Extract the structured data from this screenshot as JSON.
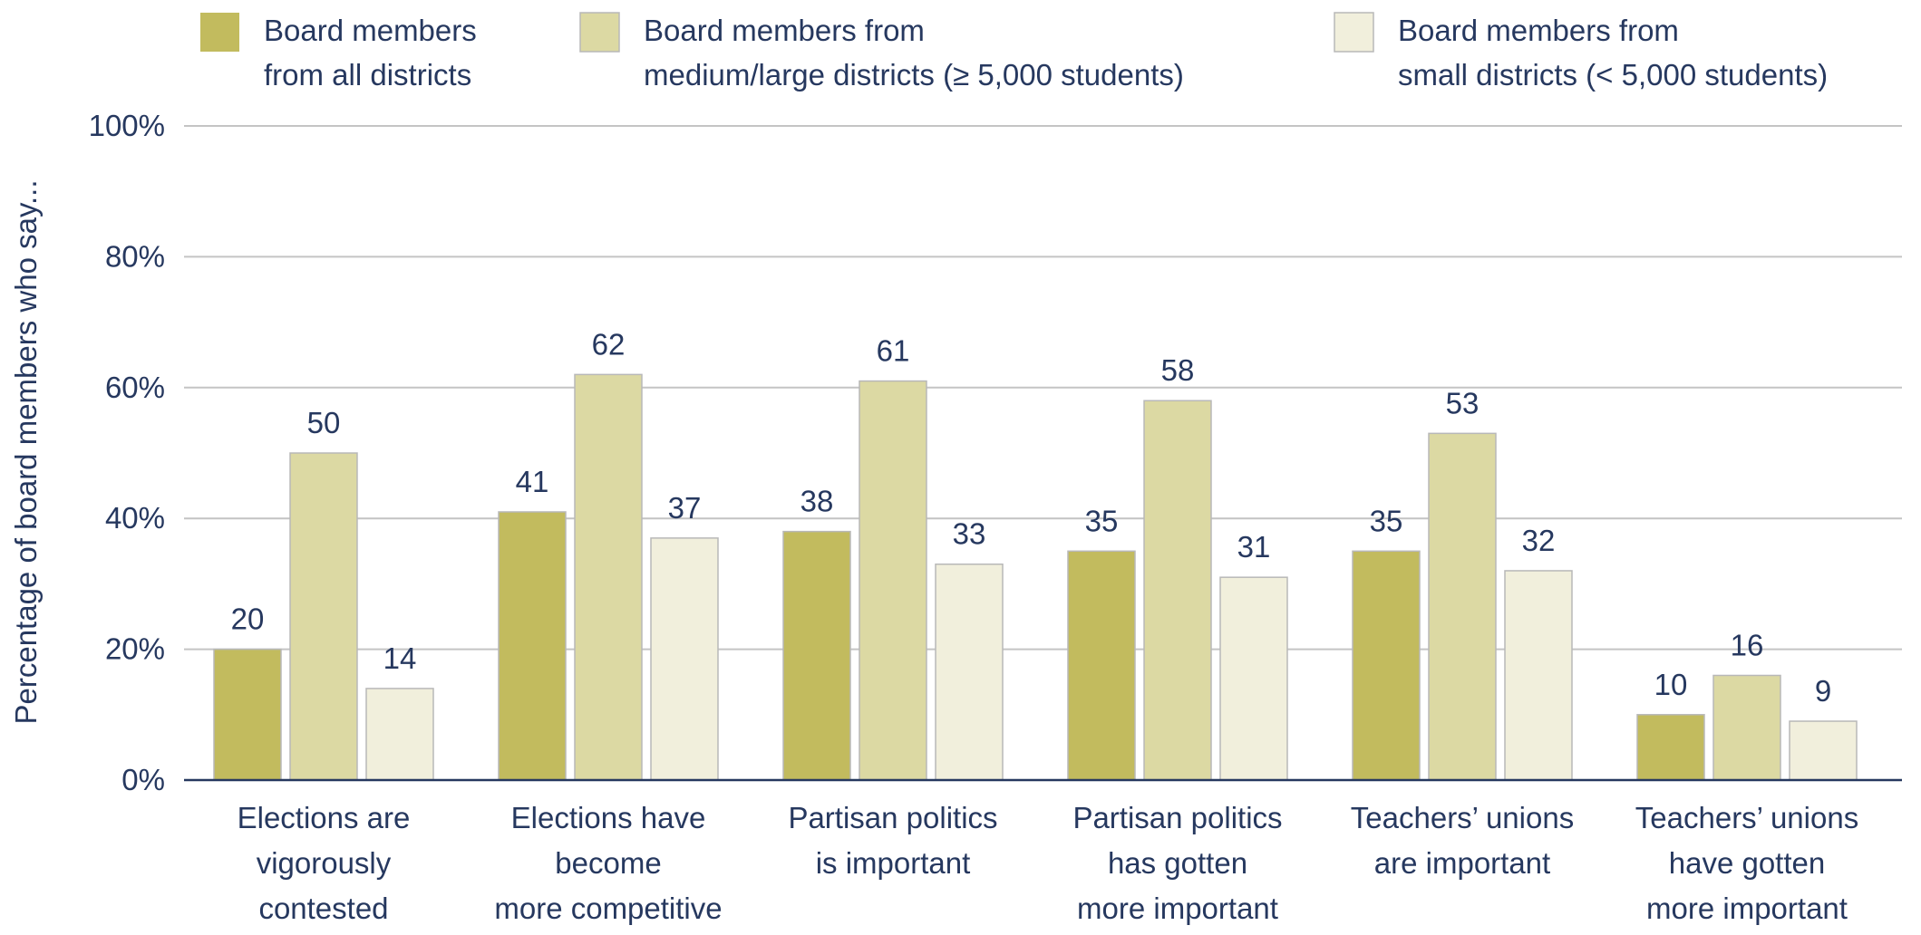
{
  "chart_data": {
    "type": "bar",
    "title": "",
    "xlabel": "",
    "ylabel": "Percentage of board members who say...",
    "ylim": [
      0,
      100
    ],
    "yticks": [
      0,
      20,
      40,
      60,
      80,
      100
    ],
    "ytick_labels": [
      "0%",
      "20%",
      "40%",
      "60%",
      "80%",
      "100%"
    ],
    "grid": true,
    "legend_position": "top",
    "categories": [
      [
        "Elections are",
        "vigorously",
        "contested"
      ],
      [
        "Elections have",
        "become",
        "more competitive"
      ],
      [
        "Partisan politics",
        "is important"
      ],
      [
        "Partisan politics",
        "has gotten",
        "more important"
      ],
      [
        "Teachers’ unions",
        "are important"
      ],
      [
        "Teachers’ unions",
        "have gotten",
        "more important"
      ]
    ],
    "series": [
      {
        "name": [
          "Board members",
          "from all districts"
        ],
        "color": "#c2bb5e",
        "values": [
          20,
          41,
          38,
          35,
          35,
          10
        ]
      },
      {
        "name": [
          "Board members from",
          "medium/large districts (≥ 5,000 students)"
        ],
        "color": "#dcd9a3",
        "values": [
          50,
          62,
          61,
          58,
          53,
          16
        ]
      },
      {
        "name": [
          "Board members from",
          "small districts (< 5,000 students)"
        ],
        "color": "#f1efdc",
        "values": [
          14,
          37,
          33,
          31,
          32,
          9
        ]
      }
    ],
    "colors": {
      "text": "#26385f",
      "grid": "#c4c4c4",
      "axis": "#26385f",
      "bar_border": "#b8b8b8"
    }
  }
}
